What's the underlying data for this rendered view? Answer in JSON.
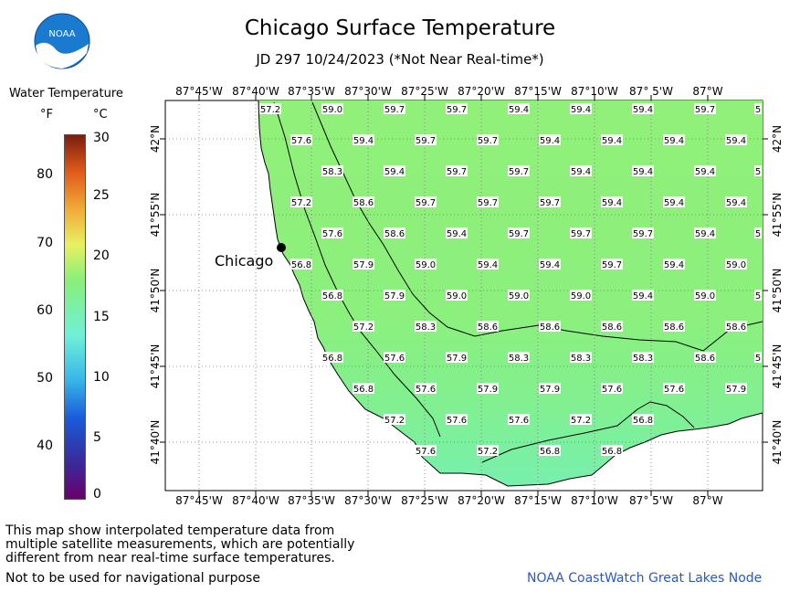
{
  "header": {
    "title": "Chicago Surface Temperature",
    "subtitle": "JD 297 10/24/2023 (*Not Near Real-time*)"
  },
  "logo": {
    "text": "NOAA"
  },
  "legend": {
    "title": "Water Temperature",
    "unit_f": "°F",
    "unit_c": "°C",
    "f_ticks": [
      "80",
      "70",
      "60",
      "50",
      "40"
    ],
    "c_ticks": [
      "30",
      "25",
      "20",
      "15",
      "10",
      "5",
      "0"
    ]
  },
  "map": {
    "city_label": "Chicago",
    "lon_labels": [
      "87°45'W",
      "87°40'W",
      "87°35'W",
      "87°30'W",
      "87°25'W",
      "87°20'W",
      "87°15'W",
      "87°10'W",
      "87° 5'W",
      "87°W"
    ],
    "lat_labels": [
      "42°N",
      "41°55'N",
      "41°50'N",
      "41°45'N",
      "41°40'N"
    ],
    "temperature_rows": [
      [
        "57.2",
        "59.0",
        "59.7",
        "59.7",
        "59.4",
        "59.4",
        "59.4",
        "59.7",
        "5"
      ],
      [
        "57.6",
        "59.4",
        "59.7",
        "59.7",
        "59.4",
        "59.4",
        "59.4",
        "59.4"
      ],
      [
        "58.3",
        "59.4",
        "59.7",
        "59.7",
        "59.4",
        "59.4",
        "59.4",
        "5"
      ],
      [
        "57.2",
        "58.6",
        "59.7",
        "59.7",
        "59.7",
        "59.4",
        "59.4",
        "59.4"
      ],
      [
        "57.6",
        "58.6",
        "59.4",
        "59.7",
        "59.7",
        "59.7",
        "59.4",
        "5"
      ],
      [
        "56.8",
        "57.9",
        "59.0",
        "59.4",
        "59.4",
        "59.7",
        "59.4",
        "59.0"
      ],
      [
        "56.8",
        "57.9",
        "59.0",
        "59.0",
        "59.0",
        "59.4",
        "59.0",
        "5"
      ],
      [
        "57.2",
        "58.3",
        "58.6",
        "58.6",
        "58.6",
        "58.6",
        "58.6"
      ],
      [
        "56.8",
        "57.6",
        "57.9",
        "58.3",
        "58.3",
        "58.3",
        "58.6",
        "5"
      ],
      [
        "56.8",
        "57.6",
        "57.9",
        "57.9",
        "57.6",
        "57.6",
        "57.9"
      ],
      [
        "57.2",
        "57.6",
        "57.6",
        "57.2",
        "56.8"
      ],
      [
        "57.6",
        "57.2",
        "56.8",
        "56.8"
      ]
    ]
  },
  "footer": {
    "note_lines": [
      "This map show interpolated temperature data from",
      "multiple satellite measurements, which are potentially",
      "different from near real-time surface temperatures."
    ],
    "nav_warning": "Not to be used for navigational purpose",
    "credit": "NOAA CoastWatch Great Lakes Node"
  },
  "colors": {
    "water_green": "#8ff07c",
    "water_teal": "#7cf0a8",
    "credit_blue": "#2a58c8"
  }
}
